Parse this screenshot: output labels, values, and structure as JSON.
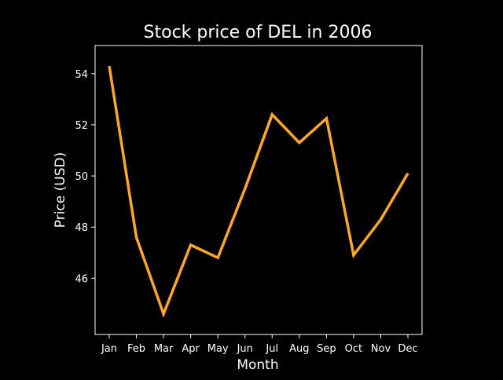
{
  "chart_data": {
    "type": "line",
    "title": "Stock price of DEL in 2006",
    "xlabel": "Month",
    "ylabel": "Price (USD)",
    "categories": [
      "Jan",
      "Feb",
      "Mar",
      "Apr",
      "May",
      "Jun",
      "Jul",
      "Aug",
      "Sep",
      "Oct",
      "Nov",
      "Dec"
    ],
    "series": [
      {
        "values": [
          54.3,
          47.6,
          44.6,
          47.3,
          46.8,
          49.5,
          52.4,
          51.3,
          52.25,
          46.9,
          48.3,
          50.1
        ],
        "color": "#FFA726"
      }
    ],
    "y_ticks": [
      46,
      48,
      50,
      52,
      54
    ],
    "ylim": [
      43.8,
      55.1
    ],
    "grid": false,
    "legend": "none",
    "background": "#000000",
    "axes_color": "#FFFFFF",
    "text_color": "#FFFFFF"
  }
}
